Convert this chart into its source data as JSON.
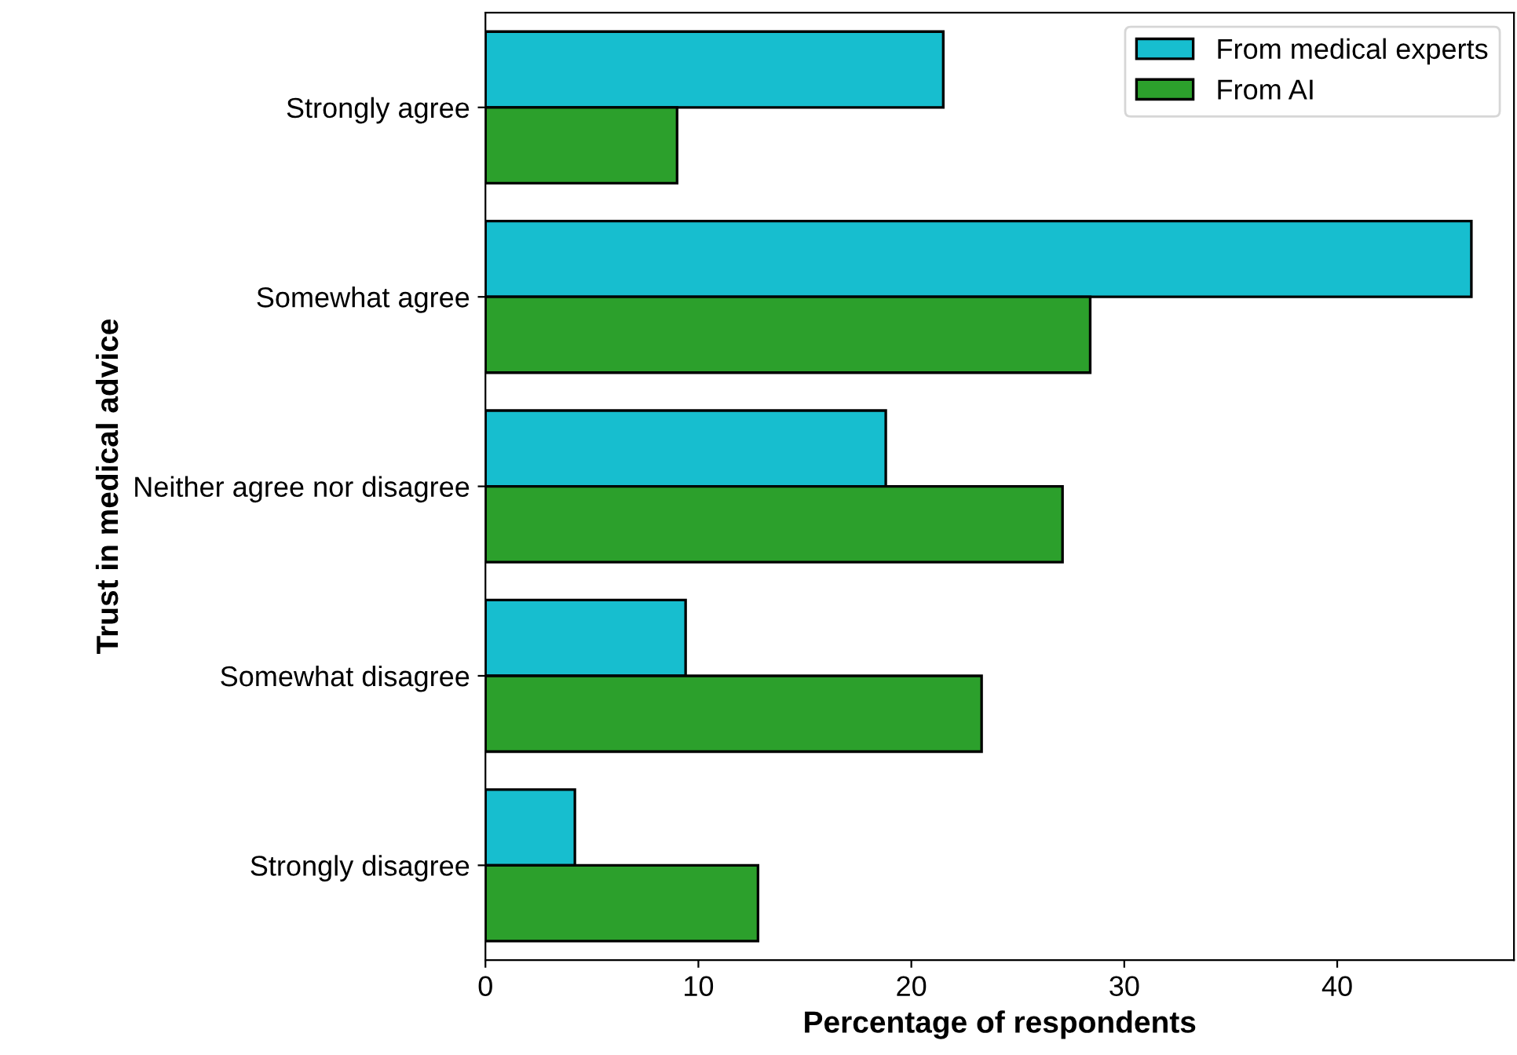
{
  "chart_data": {
    "type": "bar",
    "orientation": "horizontal",
    "xlabel": "Percentage of respondents",
    "ylabel": "Trust in medical advice",
    "categories": [
      "Strongly agree",
      "Somewhat agree",
      "Neither agree nor disagree",
      "Somewhat disagree",
      "Strongly disagree"
    ],
    "series": [
      {
        "name": "From medical experts",
        "color": "#17becf",
        "values": [
          21.5,
          46.3,
          18.8,
          9.4,
          4.2
        ]
      },
      {
        "name": "From AI",
        "color": "#2ca02c",
        "values": [
          9.0,
          28.4,
          27.1,
          23.3,
          12.8
        ]
      }
    ],
    "xlim": [
      0,
      48.3
    ],
    "xticks": [
      0,
      10,
      20,
      30,
      40
    ],
    "grid": false,
    "legend": "top right"
  }
}
